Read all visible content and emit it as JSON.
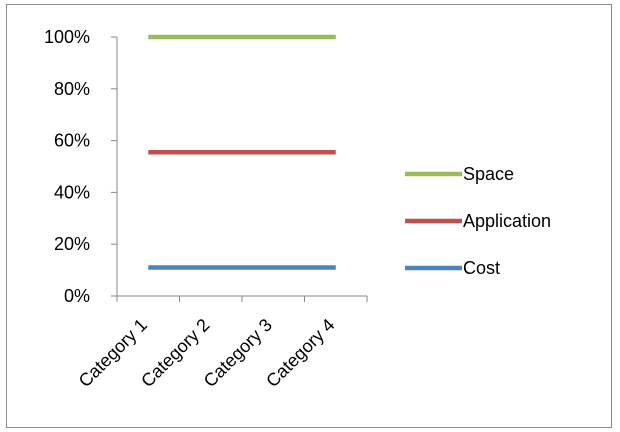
{
  "chart_data": {
    "type": "line",
    "stacked": "percent",
    "categories": [
      "Category 1",
      "Category 2",
      "Category 3",
      "Category 4"
    ],
    "series": [
      {
        "name": "Cost",
        "values": [
          11,
          11,
          11,
          11
        ],
        "color": "#4f81bd"
      },
      {
        "name": "Application",
        "values": [
          55.5,
          55.5,
          55.5,
          55.5
        ],
        "color": "#c0504d"
      },
      {
        "name": "Space",
        "values": [
          100,
          100,
          100,
          100
        ],
        "color": "#9bbb59"
      }
    ],
    "legend_order": [
      "Space",
      "Application",
      "Cost"
    ],
    "y_ticks": [
      "0%",
      "20%",
      "40%",
      "60%",
      "80%",
      "100%"
    ],
    "ylim": [
      0,
      100
    ],
    "grid": false,
    "legend_position": "right"
  }
}
